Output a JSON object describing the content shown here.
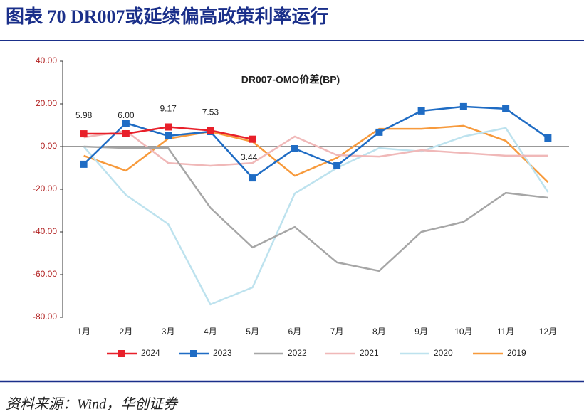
{
  "header": {
    "title": "图表 70 DR007或延续偏高政策利率运行"
  },
  "source": "资料来源：Wind，华创证券",
  "chart_data": {
    "type": "line",
    "title": "DR007-OMO价差(BP)",
    "categories": [
      "1月",
      "2月",
      "3月",
      "4月",
      "5月",
      "6月",
      "7月",
      "8月",
      "9月",
      "10月",
      "11月",
      "12月"
    ],
    "ylim": [
      -80,
      40
    ],
    "yticks": [
      {
        "value": -80,
        "label": "-80.00"
      },
      {
        "value": -60,
        "label": "-60.00"
      },
      {
        "value": -40,
        "label": "-40.00"
      },
      {
        "value": -20,
        "label": "-20.00"
      },
      {
        "value": 0,
        "label": "0.00"
      },
      {
        "value": 20,
        "label": "20.00"
      },
      {
        "value": 40,
        "label": "40.00"
      }
    ],
    "grid": false,
    "legend": "bottom",
    "series": [
      {
        "name": "2024",
        "color": "#e8202a",
        "marker": "square",
        "values": [
          5.98,
          6.0,
          9.17,
          7.53,
          3.44,
          null,
          null,
          null,
          null,
          null,
          null,
          null
        ],
        "value_labels": [
          "5.98",
          "6.00",
          "9.17",
          "7.53",
          "3.44",
          null,
          null,
          null,
          null,
          null,
          null,
          null
        ]
      },
      {
        "name": "2023",
        "color": "#1f6cc4",
        "marker": "square",
        "values": [
          -8.3,
          11,
          5,
          7,
          -14.7,
          -1,
          -9,
          6.7,
          16.7,
          18.7,
          17.7,
          4
        ]
      },
      {
        "name": "2022",
        "color": "#a6a6a6",
        "values": [
          0,
          -0.7,
          -0.7,
          -28.7,
          -47.3,
          -37.7,
          -54.3,
          -58.3,
          -40,
          -35.3,
          -21.7,
          -24
        ]
      },
      {
        "name": "2021",
        "color": "#f0b8b8",
        "values": [
          4.3,
          7.3,
          -7.7,
          -9,
          -7.7,
          4.7,
          -4,
          -4.7,
          -1.7,
          -3,
          -4.3,
          -4.3
        ]
      },
      {
        "name": "2020",
        "color": "#bde2ee",
        "values": [
          0,
          -22.7,
          -36.3,
          -74,
          -66,
          -22,
          -10,
          -0.7,
          -2.3,
          4.7,
          8.7,
          -21.3
        ]
      },
      {
        "name": "2019",
        "color": "#f79a3c",
        "values": [
          -4.3,
          -11.3,
          3.7,
          7,
          2.3,
          -13.7,
          -5.3,
          8.3,
          8.3,
          9.7,
          2.7,
          -16.7
        ]
      }
    ]
  }
}
